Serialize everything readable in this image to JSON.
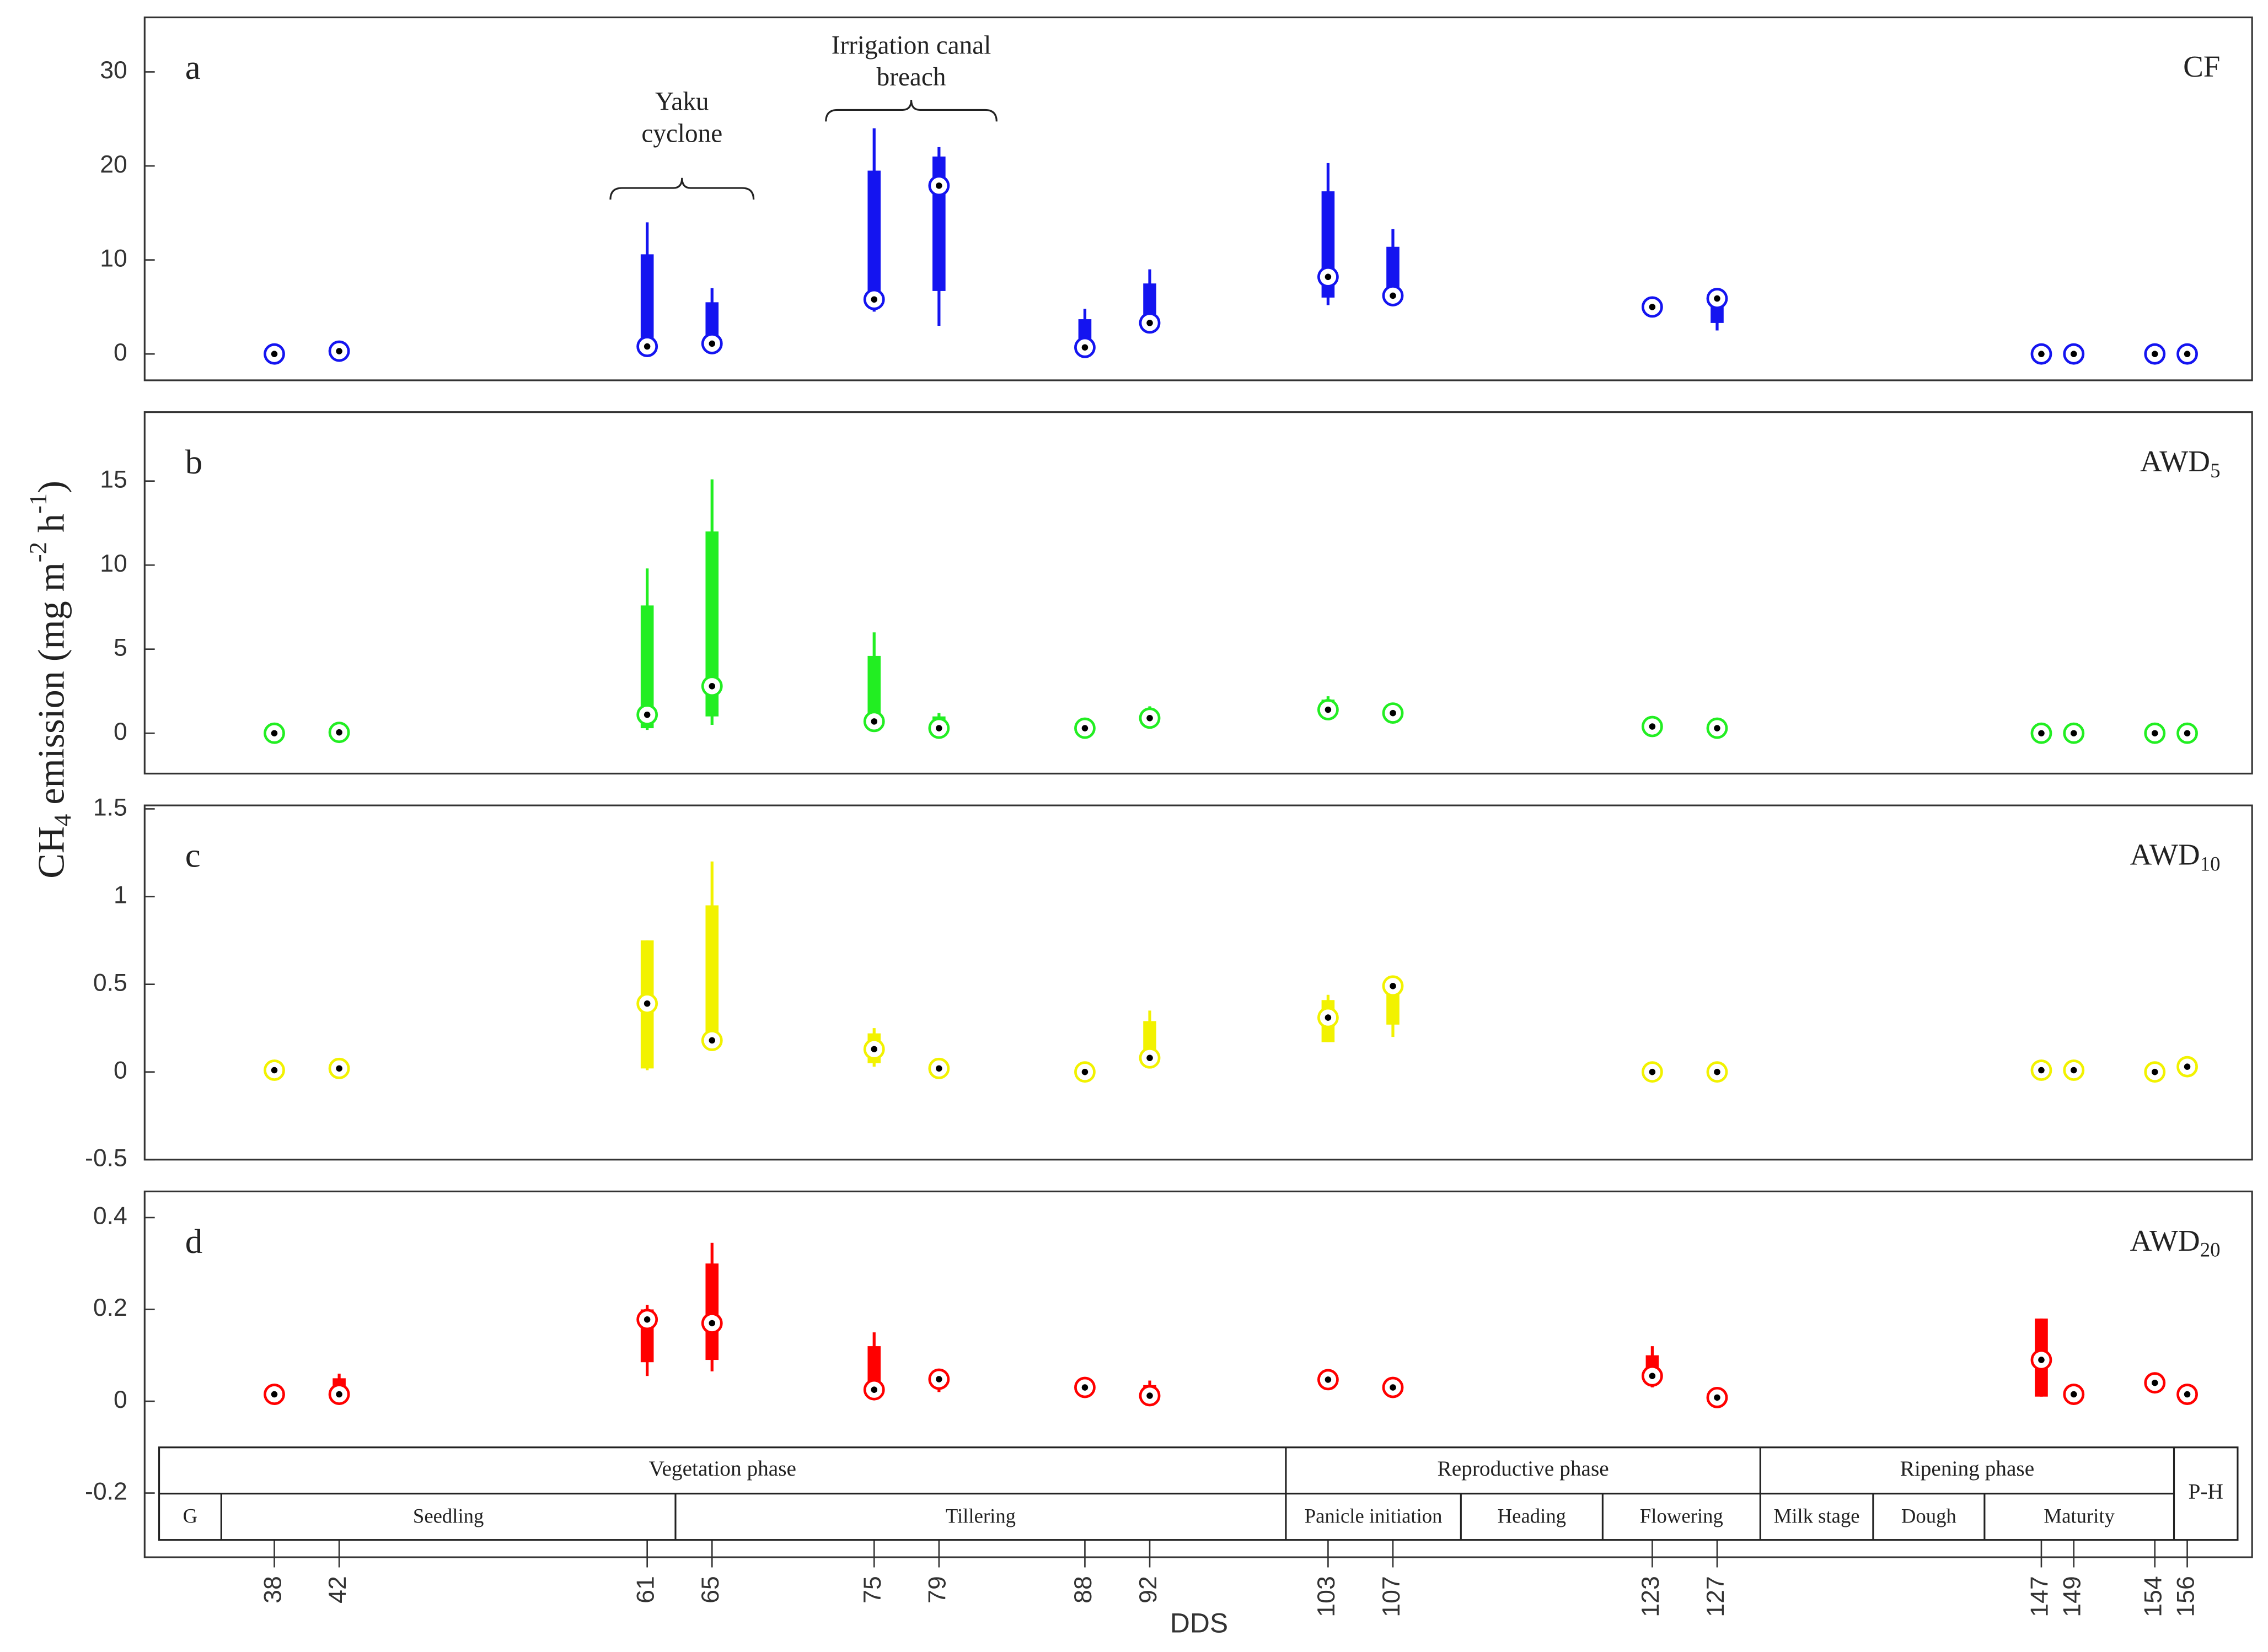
{
  "figure": {
    "ylabel": [
      "CH",
      "4",
      " emission (mg m",
      "-2",
      " h",
      "-1",
      ")"
    ],
    "xlabel": "DDS",
    "annotations": [
      {
        "lines": [
          "Yaku",
          "cyclone"
        ]
      },
      {
        "lines": [
          "Irrigation canal",
          "breach"
        ]
      }
    ],
    "phases": {
      "groups": [
        "Vegetation phase",
        "Reproductive phase",
        "Ripening phase",
        "P-H"
      ],
      "stages": [
        "G",
        "Seedling",
        "Tillering",
        "Panicle initiation",
        "Heading",
        "Flowering",
        "Milk stage",
        "Dough",
        "Maturity"
      ]
    }
  },
  "chart_data": [
    {
      "type": "box",
      "panel_label": "a",
      "label": "CF",
      "label_sub": null,
      "color": "#1414f0",
      "xlim": [
        30,
        160
      ],
      "ylim": [
        -2.8,
        35.8
      ],
      "yticks": [
        0,
        10,
        20,
        30
      ],
      "boxes": [
        {
          "x": 38,
          "median": 0
        },
        {
          "x": 42,
          "median": 0.3
        },
        {
          "x": 61,
          "low": 0.5,
          "q1": 0.8,
          "median": 0.8,
          "q3": 10.6,
          "high": 14
        },
        {
          "x": 65,
          "low": 1,
          "q1": 1.1,
          "median": 1.1,
          "q3": 5.5,
          "high": 7
        },
        {
          "x": 75,
          "low": 4.5,
          "q1": 5.5,
          "median": 5.8,
          "q3": 19.5,
          "high": 24
        },
        {
          "x": 79,
          "low": 3,
          "q1": 6.7,
          "median": 17.9,
          "q3": 21,
          "high": 22
        },
        {
          "x": 88,
          "low": 0.5,
          "q1": 0.7,
          "median": 0.7,
          "q3": 3.7,
          "high": 4.8
        },
        {
          "x": 92,
          "low": 3,
          "q1": 3.3,
          "median": 3.3,
          "q3": 7.5,
          "high": 9
        },
        {
          "x": 103,
          "low": 5.2,
          "q1": 6,
          "median": 8.2,
          "q3": 17.3,
          "high": 20.3
        },
        {
          "x": 107,
          "low": 6,
          "q1": 6.2,
          "median": 6.2,
          "q3": 11.4,
          "high": 13.3
        },
        {
          "x": 123,
          "median": 5
        },
        {
          "x": 127,
          "low": 2.5,
          "q1": 3.3,
          "median": 5.9,
          "q3": 6,
          "high": 6.3
        },
        {
          "x": 147,
          "median": 0
        },
        {
          "x": 149,
          "median": 0
        },
        {
          "x": 154,
          "median": 0
        },
        {
          "x": 156,
          "median": 0
        }
      ]
    },
    {
      "type": "box",
      "panel_label": "b",
      "label": "AWD",
      "label_sub": "5",
      "color": "#22ee22",
      "xlim": [
        30,
        160
      ],
      "ylim": [
        -2.4,
        19.1
      ],
      "yticks": [
        0,
        5,
        10,
        15
      ],
      "boxes": [
        {
          "x": 38,
          "median": 0
        },
        {
          "x": 42,
          "median": 0.05
        },
        {
          "x": 61,
          "low": 0.2,
          "q1": 0.3,
          "median": 1.1,
          "q3": 7.6,
          "high": 9.8
        },
        {
          "x": 65,
          "low": 0.5,
          "q1": 1,
          "median": 2.8,
          "q3": 12,
          "high": 15.1
        },
        {
          "x": 75,
          "low": 0.5,
          "q1": 0.6,
          "median": 0.7,
          "q3": 4.6,
          "high": 6
        },
        {
          "x": 79,
          "low": 0.2,
          "q1": 0.3,
          "median": 0.3,
          "q3": 1,
          "high": 1.2
        },
        {
          "x": 88,
          "median": 0.3
        },
        {
          "x": 92,
          "low": 0.8,
          "q1": 0.8,
          "median": 0.9,
          "q3": 1.4,
          "high": 1.6
        },
        {
          "x": 103,
          "low": 1.3,
          "q1": 1.4,
          "median": 1.4,
          "q3": 2,
          "high": 2.2
        },
        {
          "x": 107,
          "median": 1.2
        },
        {
          "x": 123,
          "median": 0.4
        },
        {
          "x": 127,
          "median": 0.3
        },
        {
          "x": 147,
          "median": 0
        },
        {
          "x": 149,
          "median": 0
        },
        {
          "x": 154,
          "median": 0
        },
        {
          "x": 156,
          "median": 0
        }
      ]
    },
    {
      "type": "box",
      "panel_label": "c",
      "label": "AWD",
      "label_sub": "10",
      "color": "#f2f200",
      "xlim": [
        30,
        160
      ],
      "ylim": [
        -0.5,
        1.52
      ],
      "yticks": [
        -0.5,
        0,
        0.5,
        1,
        1.5
      ],
      "boxes": [
        {
          "x": 38,
          "median": 0.01
        },
        {
          "x": 42,
          "median": 0.02
        },
        {
          "x": 61,
          "low": 0.01,
          "q1": 0.02,
          "median": 0.39,
          "q3": 0.75,
          "high": 0.75
        },
        {
          "x": 65,
          "low": 0.15,
          "q1": 0.18,
          "median": 0.18,
          "q3": 0.95,
          "high": 1.2
        },
        {
          "x": 75,
          "low": 0.03,
          "q1": 0.05,
          "median": 0.13,
          "q3": 0.22,
          "high": 0.25
        },
        {
          "x": 79,
          "median": 0.02
        },
        {
          "x": 88,
          "median": 0
        },
        {
          "x": 92,
          "low": 0.08,
          "q1": 0.08,
          "median": 0.08,
          "q3": 0.29,
          "high": 0.35
        },
        {
          "x": 103,
          "low": 0.17,
          "q1": 0.17,
          "median": 0.31,
          "q3": 0.41,
          "high": 0.44
        },
        {
          "x": 107,
          "low": 0.2,
          "q1": 0.27,
          "median": 0.49,
          "q3": 0.5,
          "high": 0.5
        },
        {
          "x": 123,
          "median": 0
        },
        {
          "x": 127,
          "median": 0
        },
        {
          "x": 147,
          "median": 0.01
        },
        {
          "x": 149,
          "median": 0.01
        },
        {
          "x": 154,
          "median": 0
        },
        {
          "x": 156,
          "median": 0.03
        }
      ]
    },
    {
      "type": "box",
      "panel_label": "d",
      "label": "AWD",
      "label_sub": "20",
      "color": "#ff0000",
      "xlim": [
        30,
        160
      ],
      "ylim": [
        -0.34,
        0.457
      ],
      "yticks": [
        -0.2,
        0,
        0.2,
        0.4
      ],
      "xticks": [
        38,
        42,
        61,
        65,
        75,
        79,
        88,
        92,
        103,
        107,
        123,
        127,
        147,
        149,
        154,
        156
      ],
      "boxes": [
        {
          "x": 38,
          "median": 0.015
        },
        {
          "x": 42,
          "low": 0.015,
          "q1": 0.015,
          "median": 0.015,
          "q3": 0.05,
          "high": 0.06
        },
        {
          "x": 61,
          "low": 0.055,
          "q1": 0.085,
          "median": 0.178,
          "q3": 0.2,
          "high": 0.21
        },
        {
          "x": 65,
          "low": 0.065,
          "q1": 0.09,
          "median": 0.17,
          "q3": 0.3,
          "high": 0.345
        },
        {
          "x": 75,
          "low": 0.02,
          "q1": 0.02,
          "median": 0.025,
          "q3": 0.12,
          "high": 0.15
        },
        {
          "x": 79,
          "low": 0.02,
          "q1": 0.03,
          "median": 0.048,
          "q3": 0.055,
          "high": 0.055
        },
        {
          "x": 88,
          "median": 0.03
        },
        {
          "x": 92,
          "low": 0.01,
          "q1": 0.01,
          "median": 0.012,
          "q3": 0.035,
          "high": 0.045
        },
        {
          "x": 103,
          "median": 0.047
        },
        {
          "x": 107,
          "median": 0.03
        },
        {
          "x": 123,
          "low": 0.03,
          "q1": 0.04,
          "median": 0.055,
          "q3": 0.1,
          "high": 0.12
        },
        {
          "x": 127,
          "median": 0.008
        },
        {
          "x": 147,
          "low": 0.01,
          "q1": 0.01,
          "median": 0.09,
          "q3": 0.18,
          "high": 0.18
        },
        {
          "x": 149,
          "median": 0.015
        },
        {
          "x": 154,
          "median": 0.04
        },
        {
          "x": 156,
          "median": 0.015
        }
      ]
    }
  ]
}
